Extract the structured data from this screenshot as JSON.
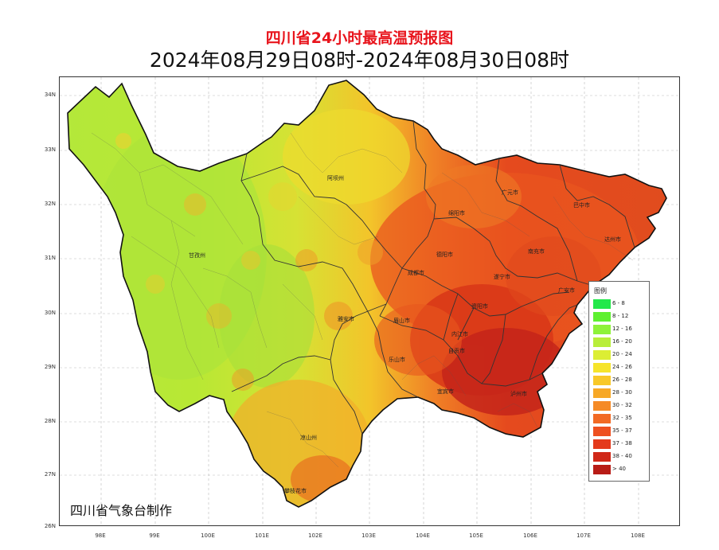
{
  "title": "四川省24小时最高温预报图",
  "subtitle": "2024年08月29日08时-2024年08月30日08时",
  "credit": "四川省气象台制作",
  "y_ticks": [
    "34N",
    "33N",
    "32N",
    "31N",
    "30N",
    "29N",
    "28N",
    "27N",
    "26N"
  ],
  "x_ticks": [
    "98E",
    "99E",
    "100E",
    "101E",
    "102E",
    "103E",
    "104E",
    "105E",
    "106E",
    "107E",
    "108E"
  ],
  "legend": {
    "title": "图例",
    "items": [
      {
        "label": "6 - 8",
        "color": "#22e84a"
      },
      {
        "label": "8 - 12",
        "color": "#5ef030"
      },
      {
        "label": "12 - 16",
        "color": "#8ef23a"
      },
      {
        "label": "16 - 20",
        "color": "#b8ee3a"
      },
      {
        "label": "20 - 24",
        "color": "#dcee34"
      },
      {
        "label": "24 - 26",
        "color": "#f6e42a"
      },
      {
        "label": "26 - 28",
        "color": "#f8c828"
      },
      {
        "label": "28 - 30",
        "color": "#f7a826"
      },
      {
        "label": "30 - 32",
        "color": "#f58a26"
      },
      {
        "label": "32 - 35",
        "color": "#f26a24"
      },
      {
        "label": "35 - 37",
        "color": "#ee5020"
      },
      {
        "label": "37 - 38",
        "color": "#e43a1c"
      },
      {
        "label": "38 - 40",
        "color": "#d02818"
      },
      {
        "label": "> 40",
        "color": "#b81c16"
      }
    ]
  },
  "cities": [
    {
      "name": "阿坝州"
    },
    {
      "name": "甘孜州"
    },
    {
      "name": "广元市"
    },
    {
      "name": "巴中市"
    },
    {
      "name": "绵阳市"
    },
    {
      "name": "达州市"
    },
    {
      "name": "德阳市"
    },
    {
      "name": "南充市"
    },
    {
      "name": "成都市"
    },
    {
      "name": "遂宁市"
    },
    {
      "name": "广安市"
    },
    {
      "name": "雅安市"
    },
    {
      "name": "眉山市"
    },
    {
      "name": "资阳市"
    },
    {
      "name": "内江市"
    },
    {
      "name": "乐山市"
    },
    {
      "name": "自贡市"
    },
    {
      "name": "宜宾市"
    },
    {
      "name": "泸州市"
    },
    {
      "name": "凉山州"
    },
    {
      "name": "攀枝花市"
    }
  ]
}
